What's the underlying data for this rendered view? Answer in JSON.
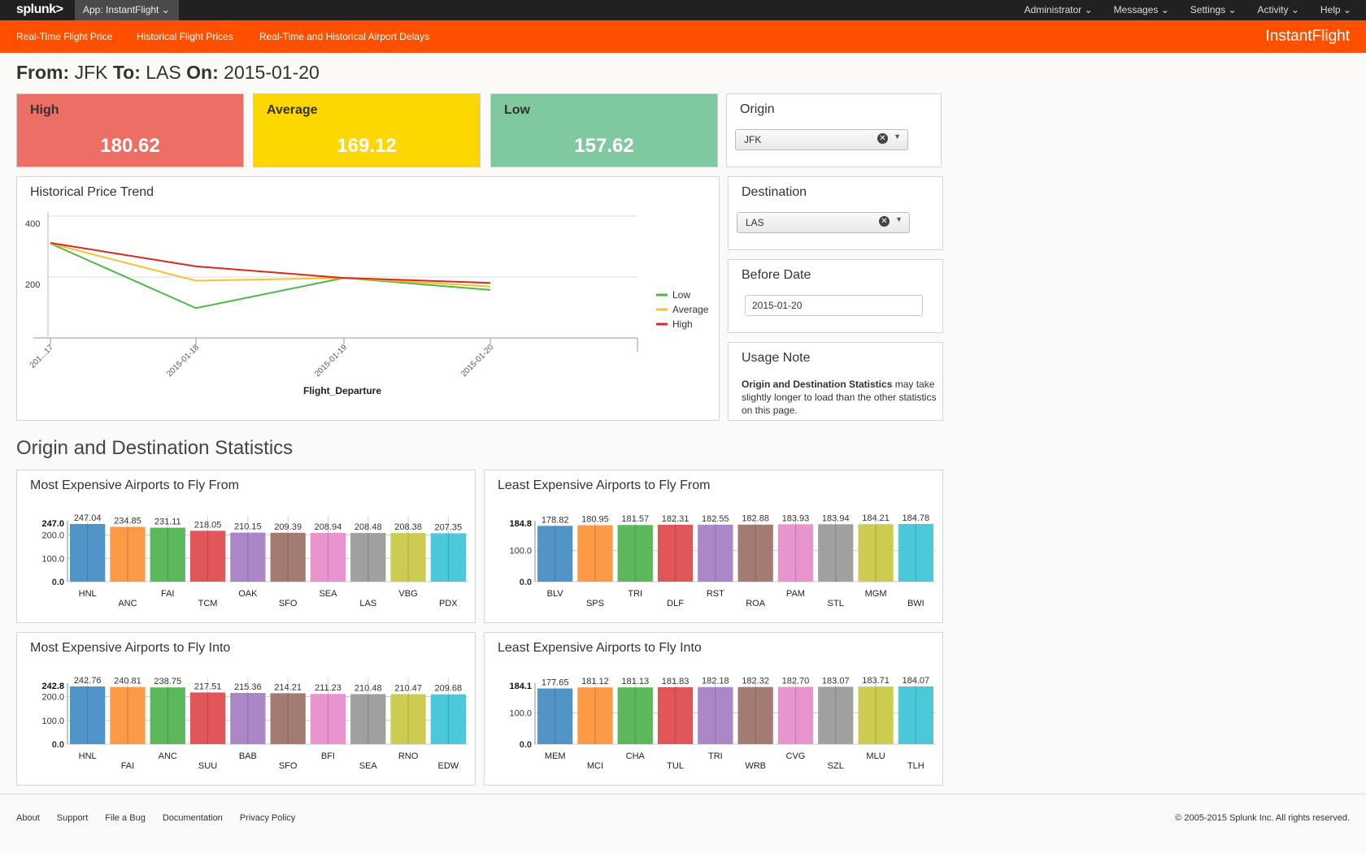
{
  "topbar": {
    "logo": "splunk>",
    "app": "App: InstantFlight ⌄",
    "menu": [
      "Administrator ⌄",
      "Messages ⌄",
      "Settings ⌄",
      "Activity ⌄",
      "Help ⌄"
    ]
  },
  "nav": {
    "items": [
      "Real-Time Flight Price",
      "Historical Flight Prices",
      "Real-Time and Historical Airport Delays"
    ],
    "brand": "InstantFlight"
  },
  "title": {
    "from_label": "From:",
    "from": "JFK",
    "to_label": "To:",
    "to": "LAS",
    "on_label": "On:",
    "on": "2015-01-20"
  },
  "kpis": [
    {
      "label": "High",
      "value": "180.62",
      "color": "#ec6e64"
    },
    {
      "label": "Average",
      "value": "169.12",
      "color": "#fdd800"
    },
    {
      "label": "Low",
      "value": "157.62",
      "color": "#80c9a0"
    }
  ],
  "origin": {
    "label": "Origin",
    "value": "JFK"
  },
  "destination": {
    "label": "Destination",
    "value": "LAS"
  },
  "before_date": {
    "label": "Before Date",
    "value": "2015-01-20"
  },
  "usage": {
    "label": "Usage Note",
    "bold": "Origin and Destination Statistics",
    "text": " may take slightly longer to load than the other statistics on this page."
  },
  "section_title": "Origin and Destination Statistics",
  "chart_data": [
    {
      "title": "Historical Price Trend",
      "type": "line",
      "xlabel": "Flight_Departure",
      "x": [
        "201...17",
        "2015-01-18",
        "2015-01-19",
        "2015-01-20"
      ],
      "yticks": [
        200,
        400
      ],
      "ylim": [
        0,
        400
      ],
      "legend": "right",
      "series": [
        {
          "name": "Low",
          "color": "#4fb74a",
          "values": [
            310,
            98,
            197,
            157.62
          ]
        },
        {
          "name": "Average",
          "color": "#fbc02d",
          "values": [
            310,
            188,
            197,
            169.12
          ]
        },
        {
          "name": "High",
          "color": "#d6291f",
          "values": [
            312,
            235,
            197,
            180.62
          ]
        }
      ]
    },
    {
      "title": "Most Expensive Airports to Fly From",
      "type": "bar",
      "max_label": "247.0",
      "yticks": [
        "0.0",
        "100.0",
        "200.0"
      ],
      "categories": [
        "HNL",
        "ANC",
        "FAI",
        "TCM",
        "OAK",
        "SFO",
        "SEA",
        "LAS",
        "VBG",
        "PDX"
      ],
      "values": [
        247.04,
        234.85,
        231.11,
        218.05,
        210.15,
        209.39,
        208.94,
        208.48,
        208.38,
        207.35
      ],
      "labels": [
        "247.04",
        "234.85",
        "231.11",
        "218.05",
        "210.15",
        "209.39",
        "208.94",
        "208.48",
        "208.38",
        "207.35"
      ],
      "max": 247.04
    },
    {
      "title": "Least Expensive Airports to Fly From",
      "type": "bar",
      "max_label": "184.8",
      "yticks": [
        "0.0",
        "100.0"
      ],
      "categories": [
        "BLV",
        "SPS",
        "TRI",
        "DLF",
        "RST",
        "ROA",
        "PAM",
        "STL",
        "MGM",
        "BWI"
      ],
      "values": [
        178.82,
        180.95,
        181.57,
        182.31,
        182.55,
        182.88,
        183.93,
        183.94,
        184.21,
        184.78
      ],
      "labels": [
        "178.82",
        "180.95",
        "181.57",
        "182.31",
        "182.55",
        "182.88",
        "183.93",
        "183.94",
        "184.21",
        "184.78"
      ],
      "max": 184.78
    },
    {
      "title": "Most Expensive Airports to Fly Into",
      "type": "bar",
      "max_label": "242.8",
      "yticks": [
        "0.0",
        "100.0",
        "200.0"
      ],
      "categories": [
        "HNL",
        "FAI",
        "ANC",
        "SUU",
        "BAB",
        "SFO",
        "BFI",
        "SEA",
        "RNO",
        "EDW"
      ],
      "values": [
        242.76,
        240.81,
        238.75,
        217.51,
        215.36,
        214.21,
        211.23,
        210.48,
        210.47,
        209.68
      ],
      "labels": [
        "242.76",
        "240.81",
        "238.75",
        "217.51",
        "215.36",
        "214.21",
        "211.23",
        "210.48",
        "210.47",
        "209.68"
      ],
      "max": 242.76
    },
    {
      "title": "Least Expensive Airports to Fly Into",
      "type": "bar",
      "max_label": "184.1",
      "yticks": [
        "0.0",
        "100.0"
      ],
      "categories": [
        "MEM",
        "MCI",
        "CHA",
        "TUL",
        "TRI",
        "WRB",
        "CVG",
        "SZL",
        "MLU",
        "TLH"
      ],
      "values": [
        177.65,
        181.12,
        181.13,
        181.83,
        182.18,
        182.32,
        182.7,
        183.07,
        183.71,
        184.07
      ],
      "labels": [
        "177.65",
        "181.12",
        "181.13",
        "181.83",
        "182.18",
        "182.32",
        "182.70",
        "183.07",
        "183.71",
        "184.07"
      ],
      "max": 184.07
    }
  ],
  "bar_colors": [
    "#5195c8",
    "#fd9a47",
    "#5cb85c",
    "#e15759",
    "#ac87c8",
    "#a37b73",
    "#e895cf",
    "#a0a0a0",
    "#cccc52",
    "#4cc9d9"
  ],
  "footer": {
    "links": [
      "About",
      "Support",
      "File a Bug",
      "Documentation",
      "Privacy Policy"
    ],
    "copyright": "© 2005-2015 Splunk Inc. All rights reserved."
  }
}
